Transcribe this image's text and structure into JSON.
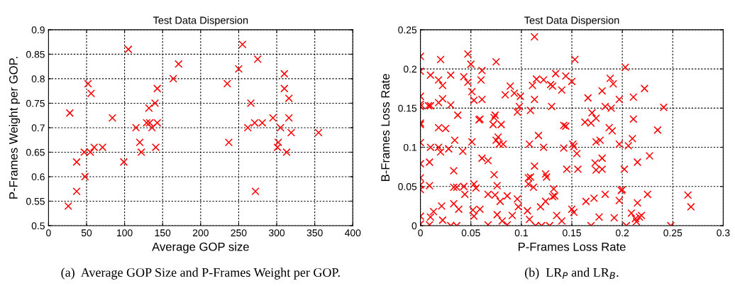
{
  "chart_data": [
    {
      "type": "scatter",
      "title": "Test Data Dispersion",
      "xlabel": "Average GOP size",
      "ylabel": "P-Frames Weight per GOP.",
      "annotations": [
        "(a)  Average GOP Size and P-Frames Weight per GOP."
      ],
      "marker": "cross",
      "grid": true,
      "xlim": [
        0,
        400
      ],
      "xticks": [
        0,
        50,
        100,
        150,
        200,
        250,
        300,
        350,
        400
      ],
      "ylim": [
        0.5,
        0.9
      ],
      "yticks": [
        0.5,
        0.55,
        0.6,
        0.65,
        0.7,
        0.75,
        0.8,
        0.85,
        0.9
      ],
      "series": [
        {
          "color": "#ff0000",
          "x": [
            26,
            28,
            37,
            37,
            48,
            47,
            52,
            55,
            56,
            60,
            71,
            84,
            99,
            105,
            115,
            120,
            122,
            129,
            132,
            133,
            136,
            140,
            141,
            143,
            143,
            164,
            171,
            235,
            237,
            250,
            255,
            262,
            266,
            271,
            272,
            275,
            281,
            295,
            301,
            302,
            305,
            310,
            310,
            313,
            316,
            316,
            319,
            355
          ],
          "values": [
            0.54,
            0.73,
            0.63,
            0.57,
            0.6,
            0.65,
            0.79,
            0.65,
            0.77,
            0.66,
            0.66,
            0.72,
            0.63,
            0.86,
            0.7,
            0.67,
            0.65,
            0.71,
            0.74,
            0.71,
            0.7,
            0.75,
            0.66,
            0.78,
            0.71,
            0.8,
            0.83,
            0.79,
            0.67,
            0.82,
            0.87,
            0.7,
            0.75,
            0.71,
            0.57,
            0.84,
            0.71,
            0.72,
            0.66,
            0.67,
            0.7,
            0.81,
            0.78,
            0.65,
            0.76,
            0.72,
            0.69,
            0.69
          ]
        }
      ]
    },
    {
      "type": "scatter",
      "title": "Test Data Dispersion",
      "xlabel": "P-Frames Loss Rate",
      "ylabel": "B-Frames Loss Rate",
      "annotations": [
        "(b)  LR$_{P}$ and LR$_{B}$."
      ],
      "marker": "cross",
      "grid": true,
      "xlim": [
        0,
        0.3
      ],
      "xticks": [
        0,
        0.05,
        0.1,
        0.15,
        0.2,
        0.25,
        0.3
      ],
      "ylim": [
        0,
        0.25
      ],
      "yticks": [
        0,
        0.05,
        0.1,
        0.15,
        0.2,
        0.25
      ],
      "series": [
        {
          "color": "#ff0000",
          "x": [
            0,
            0,
            0,
            0,
            0,
            0,
            0,
            0,
            0,
            0,
            0,
            0,
            0,
            0,
            0.009,
            0.009,
            0.009,
            0.01,
            0.008,
            0.01,
            0.01,
            0.01,
            0.013,
            0.02,
            0.018,
            0.022,
            0.018,
            0.022,
            0.018,
            0.025,
            0.018,
            0.02,
            0.028,
            0.021,
            0.022,
            0.03,
            0.03,
            0.037,
            0.034,
            0.033,
            0.033,
            0.036,
            0.033,
            0.038,
            0.03,
            0.036,
            0.042,
            0.043,
            0.047,
            0.047,
            0.043,
            0.044,
            0.05,
            0.051,
            0.053,
            0.051,
            0.053,
            0.055,
            0.052,
            0.053,
            0.059,
            0.061,
            0.06,
            0.061,
            0.058,
            0.059,
            0.061,
            0.067,
            0.067,
            0.067,
            0.075,
            0.073,
            0.074,
            0.072,
            0.075,
            0.077,
            0.08,
            0.078,
            0.073,
            0.076,
            0.074,
            0.079,
            0.076,
            0.081,
            0.084,
            0.089,
            0.082,
            0.086,
            0.086,
            0.091,
            0.093,
            0.096,
            0.096,
            0.097,
            0.099,
            0.098,
            0.106,
            0.108,
            0.109,
            0.108,
            0.107,
            0.109,
            0.112,
            0.107,
            0.114,
            0.113,
            0.113,
            0.111,
            0.115,
            0.113,
            0.117,
            0.122,
            0.12,
            0.119,
            0.124,
            0.125,
            0.124,
            0.122,
            0.129,
            0.131,
            0.13,
            0.134,
            0.128,
            0.131,
            0.133,
            0.132,
            0.135,
            0.144,
            0.15,
            0.153,
            0.14,
            0.142,
            0.144,
            0.142,
            0.151,
            0.152,
            0.155,
            0.145,
            0.156,
            0.15,
            0.152,
            0.14,
            0.166,
            0.163,
            0.169,
            0.17,
            0.174,
            0.164,
            0.172,
            0.169,
            0.177,
            0.174,
            0.178,
            0.173,
            0.18,
            0.174,
            0.18,
            0.18,
            0.183,
            0.183,
            0.189,
            0.188,
            0.191,
            0.187,
            0.19,
            0.192,
            0.197,
            0.197,
            0.206,
            0.203,
            0.199,
            0.2,
            0.197,
            0.202,
            0.21,
            0.211,
            0.211,
            0.222,
            0.215,
            0.227,
            0.225,
            0.215,
            0.204,
            0.209,
            0.213,
            0.214,
            0.217,
            0.219,
            0.241,
            0.235,
            0.248,
            0.265,
            0.268
          ],
          "values": [
            0.216,
            0.197,
            0.165,
            0.155,
            0.152,
            0.131,
            0.129,
            0.106,
            0.079,
            0.061,
            0.052,
            0.046,
            0.012,
            0.002,
            0.001,
            0.051,
            0.081,
            0.1,
            0.153,
            0.153,
            0.192,
            0.011,
            0.018,
            0.212,
            0.186,
            0.179,
            0.157,
            0.162,
            0.125,
            0.124,
            0.1,
            0.094,
            0.098,
            0.025,
            0.007,
            0.192,
            0.154,
            0.141,
            0.109,
            0.07,
            0.049,
            0.049,
            0.028,
            0.021,
            0,
            0,
            0.095,
            0.19,
            0.219,
            0.183,
            0.05,
            0.04,
            0.206,
            0.171,
            0.16,
            0.107,
            0.053,
            0.048,
            0.02,
            0.012,
            0.021,
            0.198,
            0.186,
            0.161,
            0.135,
            0.136,
            0.086,
            0.083,
            0.04,
            0.001,
            0.209,
            0.138,
            0.141,
            0.129,
            0.109,
            0.113,
            0.129,
            0.104,
            0.065,
            0.051,
            0.039,
            0.031,
            0.014,
            0.006,
            0.167,
            0.178,
            0.104,
            0.038,
            0.001,
            0.013,
            0.169,
            0.145,
            0.034,
            0.024,
            0.165,
            0.152,
            0.019,
            0.008,
            0.147,
            0.104,
            0.061,
            0.062,
            0.049,
            0.053,
            0,
            0.076,
            0.241,
            0.179,
            0.187,
            0.161,
            0.115,
            0.1,
            0,
            0.024,
            0.066,
            0.062,
            0.031,
            0.186,
            0.18,
            0.178,
            0.152,
            0.194,
            0,
            0.037,
            0.038,
            0.047,
            0.013,
            0.191,
            0.184,
            0.212,
            0.173,
            0.128,
            0.127,
            0.099,
            0.104,
            0.101,
            0.092,
            0.072,
            0.072,
            0.021,
            0.017,
            0.006,
            0.163,
            0.132,
            0.131,
            0.144,
            0.137,
            0.031,
            0.035,
            0,
            0.011,
            0.107,
            0.109,
            0.08,
            0.086,
            0.071,
            0.072,
            0.172,
            0.04,
            0.152,
            0.15,
            0.188,
            0.181,
            0.125,
            0.121,
            0.01,
            0.161,
            0.104,
            0.102,
            0.202,
            0.045,
            0.046,
            0.032,
            0.072,
            0.111,
            0.136,
            0.164,
            0.175,
            0.081,
            0.089,
            0.04,
            0.029,
            0,
            0.016,
            0.009,
            0.005,
            0.011,
            0.013,
            0.151,
            0.122,
            0,
            0.039,
            0.024
          ]
        }
      ]
    }
  ]
}
